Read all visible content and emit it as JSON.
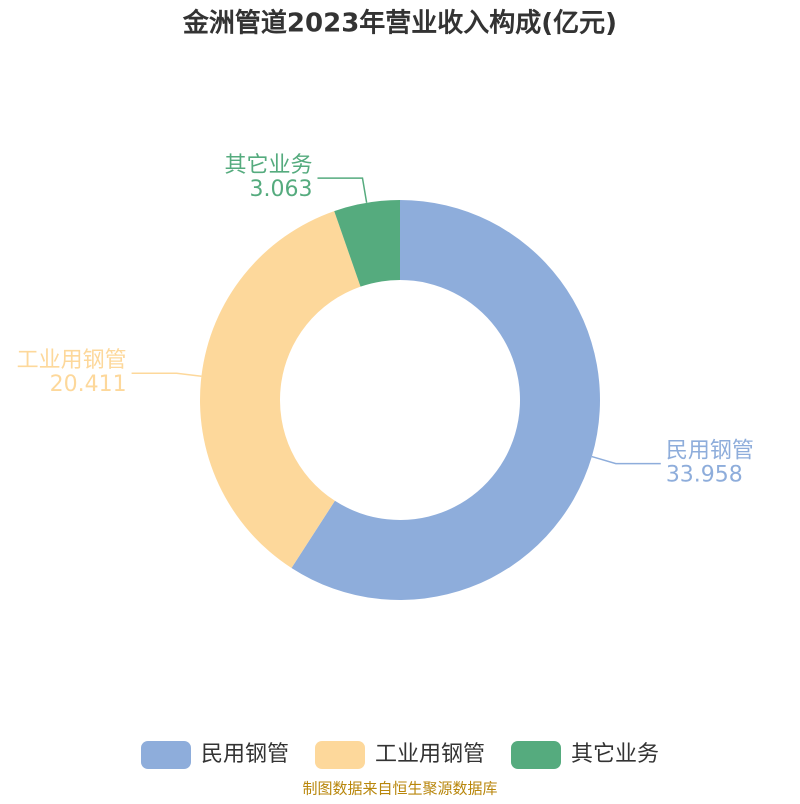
{
  "chart_data": {
    "type": "donut",
    "title": "金洲管道2023年营业收入构成(亿元)",
    "categories": [
      "民用钢管",
      "工业用钢管",
      "其它业务"
    ],
    "values": [
      33.958,
      20.411,
      3.063
    ],
    "colors": [
      "#8eaddb",
      "#fdd89b",
      "#55ab7e"
    ],
    "source": "制图数据来自恒生聚源数据库"
  }
}
